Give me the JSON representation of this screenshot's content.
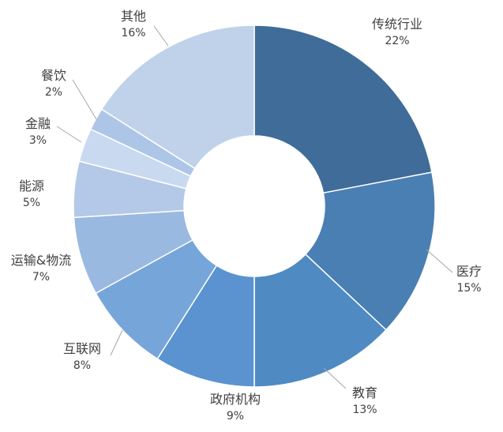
{
  "chart_data": {
    "type": "pie",
    "donut": true,
    "title": "",
    "legend": "none",
    "slices": [
      {
        "label": "传统行业",
        "value": 22,
        "value_label": "22%",
        "color": "#3f6c98"
      },
      {
        "label": "医疗",
        "value": 15,
        "value_label": "15%",
        "color": "#4a7fb3"
      },
      {
        "label": "教育",
        "value": 13,
        "value_label": "13%",
        "color": "#4f8ac3"
      },
      {
        "label": "政府机构",
        "value": 9,
        "value_label": "9%",
        "color": "#5a93cf"
      },
      {
        "label": "互联网",
        "value": 8,
        "value_label": "8%",
        "color": "#76a5da"
      },
      {
        "label": "运输&物流",
        "value": 7,
        "value_label": "7%",
        "color": "#9ab9e1"
      },
      {
        "label": "能源",
        "value": 5,
        "value_label": "5%",
        "color": "#b3c9e7"
      },
      {
        "label": "金融",
        "value": 3,
        "value_label": "3%",
        "color": "#c9daf0"
      },
      {
        "label": "餐饮",
        "value": 2,
        "value_label": "2%",
        "color": "#adc6e8"
      },
      {
        "label": "其他",
        "value": 16,
        "value_label": "16%",
        "color": "#bfd2ea"
      }
    ]
  }
}
